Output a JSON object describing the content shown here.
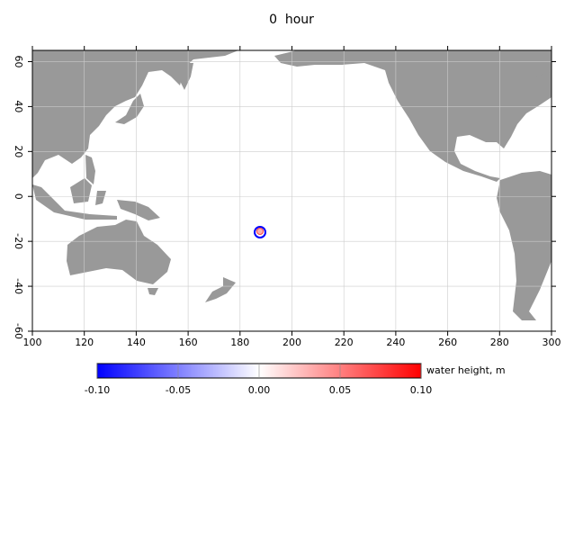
{
  "title": "0  hour",
  "map": {
    "xlim": [
      100,
      300
    ],
    "ylim": [
      -60,
      65
    ],
    "xticks": [
      100,
      120,
      140,
      160,
      180,
      200,
      220,
      240,
      260,
      280,
      300
    ],
    "yticks": [
      -60,
      -40,
      -20,
      0,
      20,
      40,
      60
    ],
    "grid": true
  },
  "colorbar": {
    "label": "water height, m",
    "lim": [
      -0.1,
      0.1
    ],
    "ticks": [
      {
        "value": -0.1,
        "label": "-0.10"
      },
      {
        "value": -0.05,
        "label": "-0.05"
      },
      {
        "value": 0,
        "label": "0.00"
      },
      {
        "value": 0.05,
        "label": "0.05"
      },
      {
        "value": 0.1,
        "label": "0.10"
      }
    ],
    "colors": [
      "#0000ff",
      "#ffffff",
      "#ff0000"
    ]
  }
}
